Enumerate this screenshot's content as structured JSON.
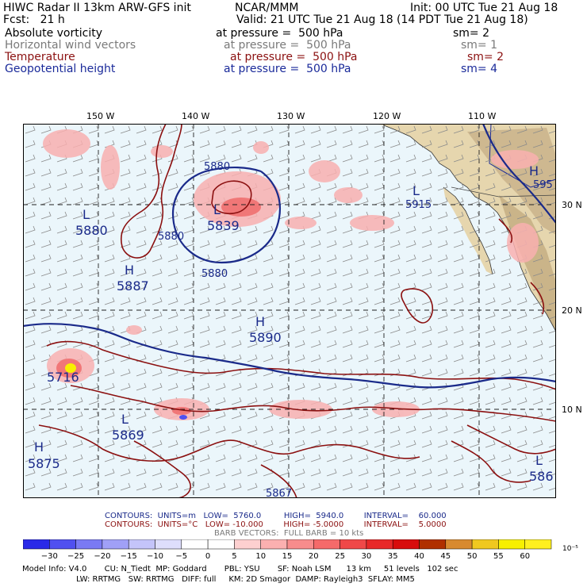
{
  "header": {
    "line1_left": "HIWC Radar II 13km ARW-GFS init",
    "line1_mid": "NCAR/MMM",
    "line1_right": "Init: 00 UTC Tue 21 Aug 18",
    "line2_left": "Fcst:   21 h",
    "line2_right": "Valid: 21 UTC Tue 21 Aug 18 (14 PDT Tue 21 Aug 18)",
    "fields": [
      {
        "name": "Absolute vorticity",
        "level": "at pressure =  500 hPa",
        "sm": "sm= 2",
        "color": "#000000"
      },
      {
        "name": "Horizontal wind vectors",
        "level": "at pressure =  500 hPa",
        "sm": "sm= 1",
        "color": "#7a7a7a"
      },
      {
        "name": "Temperature",
        "level": "at pressure =  500 hPa",
        "sm": "sm= 2",
        "color": "#8b1010"
      },
      {
        "name": "Geopotential height",
        "level": "at pressure =  500 hPa",
        "sm": "sm= 4",
        "color": "#1a2a9a"
      }
    ]
  },
  "axes": {
    "lon_labels": [
      "150 W",
      "140 W",
      "130 W",
      "120 W",
      "110 W"
    ],
    "lat_labels": [
      "30 N",
      "20 N",
      "10 N"
    ]
  },
  "map_labels": [
    {
      "text": "5880",
      "kind": "height"
    },
    {
      "text": "L",
      "kind": "low"
    },
    {
      "text": "5839",
      "kind": "height"
    },
    {
      "text": "L",
      "kind": "low"
    },
    {
      "text": "5880",
      "kind": "height"
    },
    {
      "text": "5880",
      "kind": "height"
    },
    {
      "text": "5880",
      "kind": "height"
    },
    {
      "text": "H",
      "kind": "high"
    },
    {
      "text": "5887",
      "kind": "height"
    },
    {
      "text": "H",
      "kind": "high"
    },
    {
      "text": "5890",
      "kind": "height"
    },
    {
      "text": "L",
      "kind": "low"
    },
    {
      "text": "5915",
      "kind": "height"
    },
    {
      "text": "H",
      "kind": "high"
    },
    {
      "text": "595",
      "kind": "height"
    },
    {
      "text": "5716",
      "kind": "height"
    },
    {
      "text": "L",
      "kind": "low"
    },
    {
      "text": "5869",
      "kind": "height"
    },
    {
      "text": "H",
      "kind": "high"
    },
    {
      "text": "5875",
      "kind": "height"
    },
    {
      "text": "5867",
      "kind": "height"
    },
    {
      "text": "L",
      "kind": "low"
    },
    {
      "text": "586",
      "kind": "height"
    }
  ],
  "footer": {
    "contours1": "CONTOURS:  UNITS=m   LOW=  5760.0         HIGH=  5940.0        INTERVAL=    60.000",
    "contours2": "CONTOURS:  UNITS=°C   LOW= -10.000        HIGH= -5.0000        INTERVAL=    5.0000",
    "barb": "BARB VECTORS:  FULL BARB = 10 kts",
    "colorbar_unit": "10⁻⁵ s⁻¹",
    "model_info1": "Model Info: V4.0       CU: N_Tiedt  MP: Goddard       PBL: YSU       SF: Noah LSM      13 km     51 levels   102 sec",
    "model_info2": "LW: RRTMG   SW: RRTMG   DIFF: full     KM: 2D Smagor  DAMP: Rayleigh3  SFLAY: MM5"
  },
  "colorbar": {
    "ticks": [
      "−30",
      "−25",
      "−20",
      "−15",
      "−10",
      "−5",
      "0",
      "5",
      "10",
      "15",
      "20",
      "25",
      "30",
      "35",
      "40",
      "45",
      "50",
      "55",
      "60"
    ],
    "colors": [
      "#2a2ae8",
      "#5050f0",
      "#7a7af4",
      "#a0a0f7",
      "#c4c4fa",
      "#dedefc",
      "#ffffff",
      "#ffffff",
      "#fdd0d0",
      "#fbb0b0",
      "#f88c8c",
      "#f56a6a",
      "#f04848",
      "#e82828",
      "#d80c0c",
      "#b03000",
      "#d88a30",
      "#f0c820",
      "#f8f000",
      "#fff020"
    ]
  },
  "colors": {
    "contour_height": "#1a2a8a",
    "contour_temp": "#8b1010",
    "ocean": "#ebf6fb",
    "land": "#e8d8b0"
  }
}
